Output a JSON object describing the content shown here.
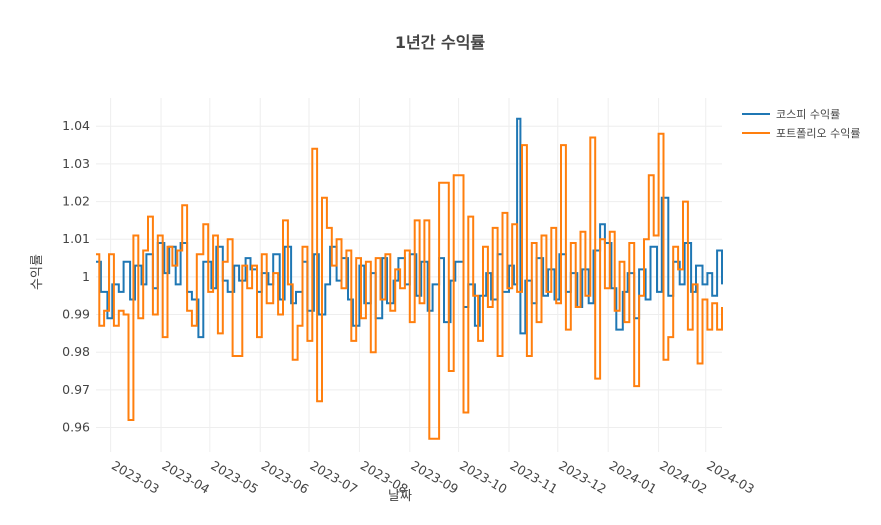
{
  "chart_data": {
    "type": "line",
    "title": "1년간 수익률",
    "xlabel": "날짜",
    "ylabel": "수익률",
    "x_range": [
      "2023-02-20",
      "2024-03-11"
    ],
    "ylim": [
      0.9535,
      1.0475
    ],
    "y_ticks": [
      0.96,
      0.97,
      0.98,
      0.99,
      1,
      1.01,
      1.02,
      1.03,
      1.04
    ],
    "y_tick_labels": [
      "0.96",
      "0.97",
      "0.98",
      "0.99",
      "1",
      "1.01",
      "1.02",
      "1.03",
      "1.04"
    ],
    "x_ticks": [
      "2023-03-01",
      "2023-04-01",
      "2023-05-01",
      "2023-06-01",
      "2023-07-01",
      "2023-08-01",
      "2023-09-01",
      "2023-10-01",
      "2023-11-01",
      "2023-12-01",
      "2024-01-01",
      "2024-02-01",
      "2024-03-01"
    ],
    "x_tick_labels": [
      "2023-03",
      "2023-04",
      "2023-05",
      "2023-06",
      "2023-07",
      "2023-08",
      "2023-09",
      "2023-10",
      "2023-11",
      "2023-12",
      "2024-01",
      "2024-02",
      "2024-03"
    ],
    "grid": true,
    "legend_position": "top-right",
    "series": [
      {
        "name": "코스피 수익률",
        "color": "#1f77b4",
        "points": [
          [
            "2023-02-20",
            1.004
          ],
          [
            "2023-02-23",
            0.996
          ],
          [
            "2023-02-27",
            0.989
          ],
          [
            "2023-03-02",
            0.998
          ],
          [
            "2023-03-06",
            0.996
          ],
          [
            "2023-03-09",
            1.004
          ],
          [
            "2023-03-13",
            0.994
          ],
          [
            "2023-03-16",
            1.003
          ],
          [
            "2023-03-20",
            0.998
          ],
          [
            "2023-03-23",
            1.006
          ],
          [
            "2023-03-27",
            0.997
          ],
          [
            "2023-03-30",
            1.009
          ],
          [
            "2023-04-03",
            1.001
          ],
          [
            "2023-04-06",
            1.008
          ],
          [
            "2023-04-10",
            0.998
          ],
          [
            "2023-04-13",
            1.009
          ],
          [
            "2023-04-17",
            0.996
          ],
          [
            "2023-04-20",
            0.994
          ],
          [
            "2023-04-24",
            0.984
          ],
          [
            "2023-04-27",
            1.004
          ],
          [
            "2023-05-02",
            0.997
          ],
          [
            "2023-05-05",
            1.008
          ],
          [
            "2023-05-09",
            0.999
          ],
          [
            "2023-05-12",
            0.996
          ],
          [
            "2023-05-16",
            1.003
          ],
          [
            "2023-05-19",
            0.999
          ],
          [
            "2023-05-23",
            1.005
          ],
          [
            "2023-05-26",
            1.002
          ],
          [
            "2023-05-30",
            0.996
          ],
          [
            "2023-06-02",
            1.001
          ],
          [
            "2023-06-06",
            0.998
          ],
          [
            "2023-06-09",
            1.006
          ],
          [
            "2023-06-13",
            0.994
          ],
          [
            "2023-06-16",
            1.008
          ],
          [
            "2023-06-20",
            0.993
          ],
          [
            "2023-06-23",
            0.996
          ],
          [
            "2023-06-27",
            1.004
          ],
          [
            "2023-06-30",
            0.991
          ],
          [
            "2023-07-04",
            1.006
          ],
          [
            "2023-07-07",
            0.99
          ],
          [
            "2023-07-11",
            0.998
          ],
          [
            "2023-07-14",
            1.008
          ],
          [
            "2023-07-18",
            0.999
          ],
          [
            "2023-07-21",
            1.005
          ],
          [
            "2023-07-25",
            0.994
          ],
          [
            "2023-07-28",
            0.987
          ],
          [
            "2023-08-01",
            1.003
          ],
          [
            "2023-08-04",
            0.993
          ],
          [
            "2023-08-08",
            1.001
          ],
          [
            "2023-08-11",
            0.989
          ],
          [
            "2023-08-15",
            1.005
          ],
          [
            "2023-08-18",
            0.993
          ],
          [
            "2023-08-22",
            0.999
          ],
          [
            "2023-08-25",
            1.005
          ],
          [
            "2023-08-29",
            0.998
          ],
          [
            "2023-09-01",
            1.006
          ],
          [
            "2023-09-05",
            0.995
          ],
          [
            "2023-09-08",
            1.004
          ],
          [
            "2023-09-12",
            0.991
          ],
          [
            "2023-09-15",
            0.998
          ],
          [
            "2023-09-19",
            1.005
          ],
          [
            "2023-09-22",
            0.988
          ],
          [
            "2023-09-26",
            0.999
          ],
          [
            "2023-09-29",
            1.004
          ],
          [
            "2023-10-04",
            0.992
          ],
          [
            "2023-10-07",
            0.998
          ],
          [
            "2023-10-11",
            0.987
          ],
          [
            "2023-10-14",
            0.995
          ],
          [
            "2023-10-18",
            1.001
          ],
          [
            "2023-10-21",
            0.994
          ],
          [
            "2023-10-25",
            1.006
          ],
          [
            "2023-10-28",
            0.996
          ],
          [
            "2023-11-01",
            1.003
          ],
          [
            "2023-11-04",
            0.998
          ],
          [
            "2023-11-06",
            1.042
          ],
          [
            "2023-11-08",
            0.985
          ],
          [
            "2023-11-11",
            0.999
          ],
          [
            "2023-11-15",
            0.993
          ],
          [
            "2023-11-18",
            1.005
          ],
          [
            "2023-11-22",
            0.995
          ],
          [
            "2023-11-25",
            1.002
          ],
          [
            "2023-11-29",
            0.994
          ],
          [
            "2023-12-02",
            1.006
          ],
          [
            "2023-12-06",
            0.996
          ],
          [
            "2023-12-09",
            1.001
          ],
          [
            "2023-12-13",
            0.992
          ],
          [
            "2023-12-16",
            1.002
          ],
          [
            "2023-12-20",
            0.993
          ],
          [
            "2023-12-23",
            1.007
          ],
          [
            "2023-12-27",
            1.014
          ],
          [
            "2023-12-30",
            1.009
          ],
          [
            "2024-01-03",
            0.997
          ],
          [
            "2024-01-06",
            0.986
          ],
          [
            "2024-01-10",
            0.996
          ],
          [
            "2024-01-13",
            1.001
          ],
          [
            "2024-01-17",
            0.989
          ],
          [
            "2024-01-20",
            1.002
          ],
          [
            "2024-01-24",
            0.994
          ],
          [
            "2024-01-27",
            1.008
          ],
          [
            "2024-01-31",
            0.996
          ],
          [
            "2024-02-03",
            1.021
          ],
          [
            "2024-02-07",
            0.995
          ],
          [
            "2024-02-10",
            1.004
          ],
          [
            "2024-02-14",
            0.998
          ],
          [
            "2024-02-17",
            1.009
          ],
          [
            "2024-02-21",
            0.996
          ],
          [
            "2024-02-24",
            1.003
          ],
          [
            "2024-02-28",
            0.998
          ],
          [
            "2024-03-02",
            1.001
          ],
          [
            "2024-03-05",
            0.995
          ],
          [
            "2024-03-08",
            1.007
          ],
          [
            "2024-03-11",
            0.998
          ]
        ]
      },
      {
        "name": "포트폴리오 수익률",
        "color": "#ff7f0e",
        "points": [
          [
            "2023-02-20",
            1.006
          ],
          [
            "2023-02-22",
            0.987
          ],
          [
            "2023-02-25",
            0.991
          ],
          [
            "2023-02-28",
            1.006
          ],
          [
            "2023-03-03",
            0.987
          ],
          [
            "2023-03-06",
            0.991
          ],
          [
            "2023-03-09",
            0.99
          ],
          [
            "2023-03-12",
            0.962
          ],
          [
            "2023-03-15",
            1.011
          ],
          [
            "2023-03-18",
            0.989
          ],
          [
            "2023-03-21",
            1.007
          ],
          [
            "2023-03-24",
            1.016
          ],
          [
            "2023-03-27",
            0.99
          ],
          [
            "2023-03-30",
            1.011
          ],
          [
            "2023-04-02",
            0.984
          ],
          [
            "2023-04-05",
            1.008
          ],
          [
            "2023-04-08",
            1.003
          ],
          [
            "2023-04-11",
            1.007
          ],
          [
            "2023-04-14",
            1.019
          ],
          [
            "2023-04-17",
            0.991
          ],
          [
            "2023-04-20",
            0.987
          ],
          [
            "2023-04-23",
            1.006
          ],
          [
            "2023-04-27",
            1.014
          ],
          [
            "2023-04-30",
            0.996
          ],
          [
            "2023-05-03",
            1.011
          ],
          [
            "2023-05-06",
            0.985
          ],
          [
            "2023-05-09",
            1.004
          ],
          [
            "2023-05-12",
            1.01
          ],
          [
            "2023-05-15",
            0.979
          ],
          [
            "2023-05-18",
            0.979
          ],
          [
            "2023-05-21",
            1.003
          ],
          [
            "2023-05-24",
            0.997
          ],
          [
            "2023-05-27",
            1.003
          ],
          [
            "2023-05-30",
            0.984
          ],
          [
            "2023-06-02",
            1.006
          ],
          [
            "2023-06-05",
            0.993
          ],
          [
            "2023-06-09",
            1.001
          ],
          [
            "2023-06-12",
            0.99
          ],
          [
            "2023-06-15",
            1.015
          ],
          [
            "2023-06-18",
            0.998
          ],
          [
            "2023-06-21",
            0.978
          ],
          [
            "2023-06-24",
            0.987
          ],
          [
            "2023-06-27",
            1.008
          ],
          [
            "2023-06-30",
            0.983
          ],
          [
            "2023-07-03",
            1.034
          ],
          [
            "2023-07-06",
            0.967
          ],
          [
            "2023-07-09",
            1.021
          ],
          [
            "2023-07-12",
            1.013
          ],
          [
            "2023-07-15",
            1.003
          ],
          [
            "2023-07-18",
            1.01
          ],
          [
            "2023-07-21",
            0.997
          ],
          [
            "2023-07-24",
            1.007
          ],
          [
            "2023-07-27",
            0.983
          ],
          [
            "2023-07-30",
            1.005
          ],
          [
            "2023-08-02",
            0.989
          ],
          [
            "2023-08-05",
            1.004
          ],
          [
            "2023-08-08",
            0.98
          ],
          [
            "2023-08-11",
            1.005
          ],
          [
            "2023-08-14",
            0.994
          ],
          [
            "2023-08-17",
            1.006
          ],
          [
            "2023-08-20",
            0.991
          ],
          [
            "2023-08-23",
            1.002
          ],
          [
            "2023-08-26",
            0.997
          ],
          [
            "2023-08-29",
            1.007
          ],
          [
            "2023-09-01",
            0.988
          ],
          [
            "2023-09-04",
            1.015
          ],
          [
            "2023-09-07",
            0.993
          ],
          [
            "2023-09-10",
            1.015
          ],
          [
            "2023-09-13",
            0.957
          ],
          [
            "2023-09-16",
            0.957
          ],
          [
            "2023-09-19",
            1.025
          ],
          [
            "2023-09-22",
            1.025
          ],
          [
            "2023-09-25",
            0.975
          ],
          [
            "2023-09-28",
            1.027
          ],
          [
            "2023-10-01",
            1.027
          ],
          [
            "2023-10-04",
            0.964
          ],
          [
            "2023-10-07",
            1.016
          ],
          [
            "2023-10-10",
            0.995
          ],
          [
            "2023-10-13",
            0.983
          ],
          [
            "2023-10-16",
            1.008
          ],
          [
            "2023-10-19",
            0.992
          ],
          [
            "2023-10-22",
            1.013
          ],
          [
            "2023-10-25",
            0.979
          ],
          [
            "2023-10-28",
            1.017
          ],
          [
            "2023-10-31",
            0.997
          ],
          [
            "2023-11-03",
            1.014
          ],
          [
            "2023-11-06",
            0.996
          ],
          [
            "2023-11-09",
            1.035
          ],
          [
            "2023-11-12",
            0.979
          ],
          [
            "2023-11-15",
            1.009
          ],
          [
            "2023-11-18",
            0.988
          ],
          [
            "2023-11-21",
            1.011
          ],
          [
            "2023-11-24",
            0.996
          ],
          [
            "2023-11-27",
            1.013
          ],
          [
            "2023-11-30",
            0.993
          ],
          [
            "2023-12-03",
            1.035
          ],
          [
            "2023-12-06",
            0.986
          ],
          [
            "2023-12-09",
            1.009
          ],
          [
            "2023-12-12",
            0.992
          ],
          [
            "2023-12-15",
            1.012
          ],
          [
            "2023-12-18",
            0.995
          ],
          [
            "2023-12-21",
            1.037
          ],
          [
            "2023-12-24",
            0.973
          ],
          [
            "2023-12-27",
            1.01
          ],
          [
            "2023-12-30",
            0.997
          ],
          [
            "2024-01-02",
            1.012
          ],
          [
            "2024-01-05",
            0.991
          ],
          [
            "2024-01-08",
            1.004
          ],
          [
            "2024-01-11",
            0.988
          ],
          [
            "2024-01-14",
            1.009
          ],
          [
            "2024-01-17",
            0.971
          ],
          [
            "2024-01-20",
            0.995
          ],
          [
            "2024-01-23",
            1.01
          ],
          [
            "2024-01-26",
            1.027
          ],
          [
            "2024-01-29",
            1.011
          ],
          [
            "2024-02-01",
            1.038
          ],
          [
            "2024-02-04",
            0.978
          ],
          [
            "2024-02-07",
            0.984
          ],
          [
            "2024-02-10",
            1.008
          ],
          [
            "2024-02-13",
            1.002
          ],
          [
            "2024-02-16",
            1.02
          ],
          [
            "2024-02-19",
            0.986
          ],
          [
            "2024-02-22",
            0.998
          ],
          [
            "2024-02-25",
            0.977
          ],
          [
            "2024-02-28",
            0.994
          ],
          [
            "2024-03-02",
            0.986
          ],
          [
            "2024-03-05",
            0.993
          ],
          [
            "2024-03-08",
            0.986
          ],
          [
            "2024-03-11",
            0.992
          ]
        ]
      }
    ]
  }
}
